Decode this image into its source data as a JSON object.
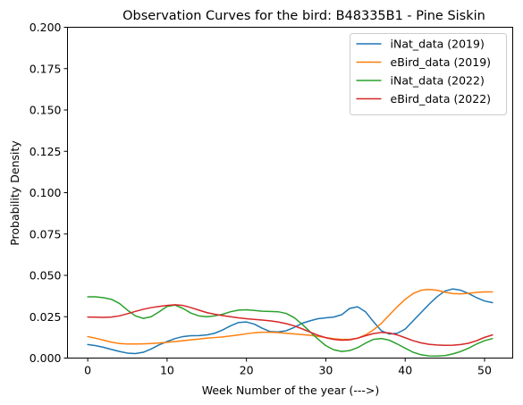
{
  "chart_data": {
    "type": "line",
    "title": "Observation Curves for the bird: B48335B1 - Pine Siskin",
    "xlabel": "Week Number of the year (--->)",
    "ylabel": "Probability Density",
    "xlim": [
      -2.55,
      53.55
    ],
    "ylim": [
      0,
      0.2
    ],
    "xticks": [
      0,
      10,
      20,
      30,
      40,
      50
    ],
    "yticks": [
      "0.000",
      "0.025",
      "0.050",
      "0.075",
      "0.100",
      "0.125",
      "0.150",
      "0.175",
      "0.200"
    ],
    "legend_position": "top-right",
    "grid": false,
    "x": [
      0,
      1,
      2,
      3,
      4,
      5,
      6,
      7,
      8,
      9,
      10,
      11,
      12,
      13,
      14,
      15,
      16,
      17,
      18,
      19,
      20,
      21,
      22,
      23,
      24,
      25,
      26,
      27,
      28,
      29,
      30,
      31,
      32,
      33,
      34,
      35,
      36,
      37,
      38,
      39,
      40,
      41,
      42,
      43,
      44,
      45,
      46,
      47,
      48,
      49,
      50,
      51
    ],
    "series": [
      {
        "name": "iNat_data (2019)",
        "color": "#1f77b4",
        "values": [
          0.0082,
          0.0075,
          0.0065,
          0.0052,
          0.004,
          0.003,
          0.0027,
          0.0035,
          0.0055,
          0.008,
          0.01,
          0.0118,
          0.013,
          0.0135,
          0.0136,
          0.014,
          0.015,
          0.017,
          0.0195,
          0.0215,
          0.0218,
          0.0205,
          0.018,
          0.016,
          0.0158,
          0.0165,
          0.0185,
          0.021,
          0.0225,
          0.0238,
          0.0243,
          0.0248,
          0.0262,
          0.03,
          0.031,
          0.028,
          0.022,
          0.0165,
          0.0145,
          0.015,
          0.0175,
          0.0225,
          0.0275,
          0.0325,
          0.037,
          0.0405,
          0.0418,
          0.041,
          0.039,
          0.0365,
          0.0345,
          0.0335
        ]
      },
      {
        "name": "eBird_data (2019)",
        "color": "#ff7f0e",
        "values": [
          0.013,
          0.012,
          0.0108,
          0.0096,
          0.0088,
          0.0085,
          0.0085,
          0.0086,
          0.0088,
          0.0091,
          0.0095,
          0.01,
          0.0105,
          0.011,
          0.0115,
          0.012,
          0.0124,
          0.0128,
          0.0134,
          0.014,
          0.0147,
          0.0153,
          0.0156,
          0.0156,
          0.0154,
          0.015,
          0.0146,
          0.0142,
          0.0138,
          0.0132,
          0.0124,
          0.0117,
          0.0113,
          0.0113,
          0.012,
          0.014,
          0.017,
          0.021,
          0.026,
          0.031,
          0.0355,
          0.039,
          0.041,
          0.0415,
          0.041,
          0.0398,
          0.039,
          0.0388,
          0.0392,
          0.0397,
          0.04,
          0.04
        ]
      },
      {
        "name": "iNat_data (2022)",
        "color": "#2ca02c",
        "values": [
          0.037,
          0.037,
          0.0365,
          0.0355,
          0.033,
          0.029,
          0.0255,
          0.024,
          0.025,
          0.028,
          0.0312,
          0.032,
          0.03,
          0.0272,
          0.0255,
          0.025,
          0.0255,
          0.0265,
          0.028,
          0.029,
          0.0292,
          0.0288,
          0.0283,
          0.0282,
          0.028,
          0.027,
          0.0245,
          0.0205,
          0.016,
          0.0115,
          0.0075,
          0.005,
          0.004,
          0.0045,
          0.0063,
          0.009,
          0.0113,
          0.0118,
          0.0108,
          0.0085,
          0.006,
          0.0035,
          0.002,
          0.0013,
          0.0012,
          0.0015,
          0.0025,
          0.004,
          0.006,
          0.0085,
          0.0105,
          0.0118
        ]
      },
      {
        "name": "eBird_data (2022)",
        "color": "#d62728",
        "values": [
          0.0248,
          0.0247,
          0.0246,
          0.0248,
          0.0255,
          0.0268,
          0.0282,
          0.0295,
          0.0305,
          0.0312,
          0.0318,
          0.0322,
          0.0318,
          0.0305,
          0.029,
          0.0275,
          0.0265,
          0.0257,
          0.025,
          0.0243,
          0.0238,
          0.0234,
          0.023,
          0.0225,
          0.0218,
          0.0208,
          0.0195,
          0.0177,
          0.0157,
          0.0138,
          0.0123,
          0.0113,
          0.0108,
          0.011,
          0.012,
          0.0135,
          0.0148,
          0.0155,
          0.0152,
          0.014,
          0.0123,
          0.0105,
          0.0092,
          0.0083,
          0.0079,
          0.0077,
          0.0078,
          0.0082,
          0.009,
          0.0105,
          0.0125,
          0.014
        ]
      }
    ]
  }
}
